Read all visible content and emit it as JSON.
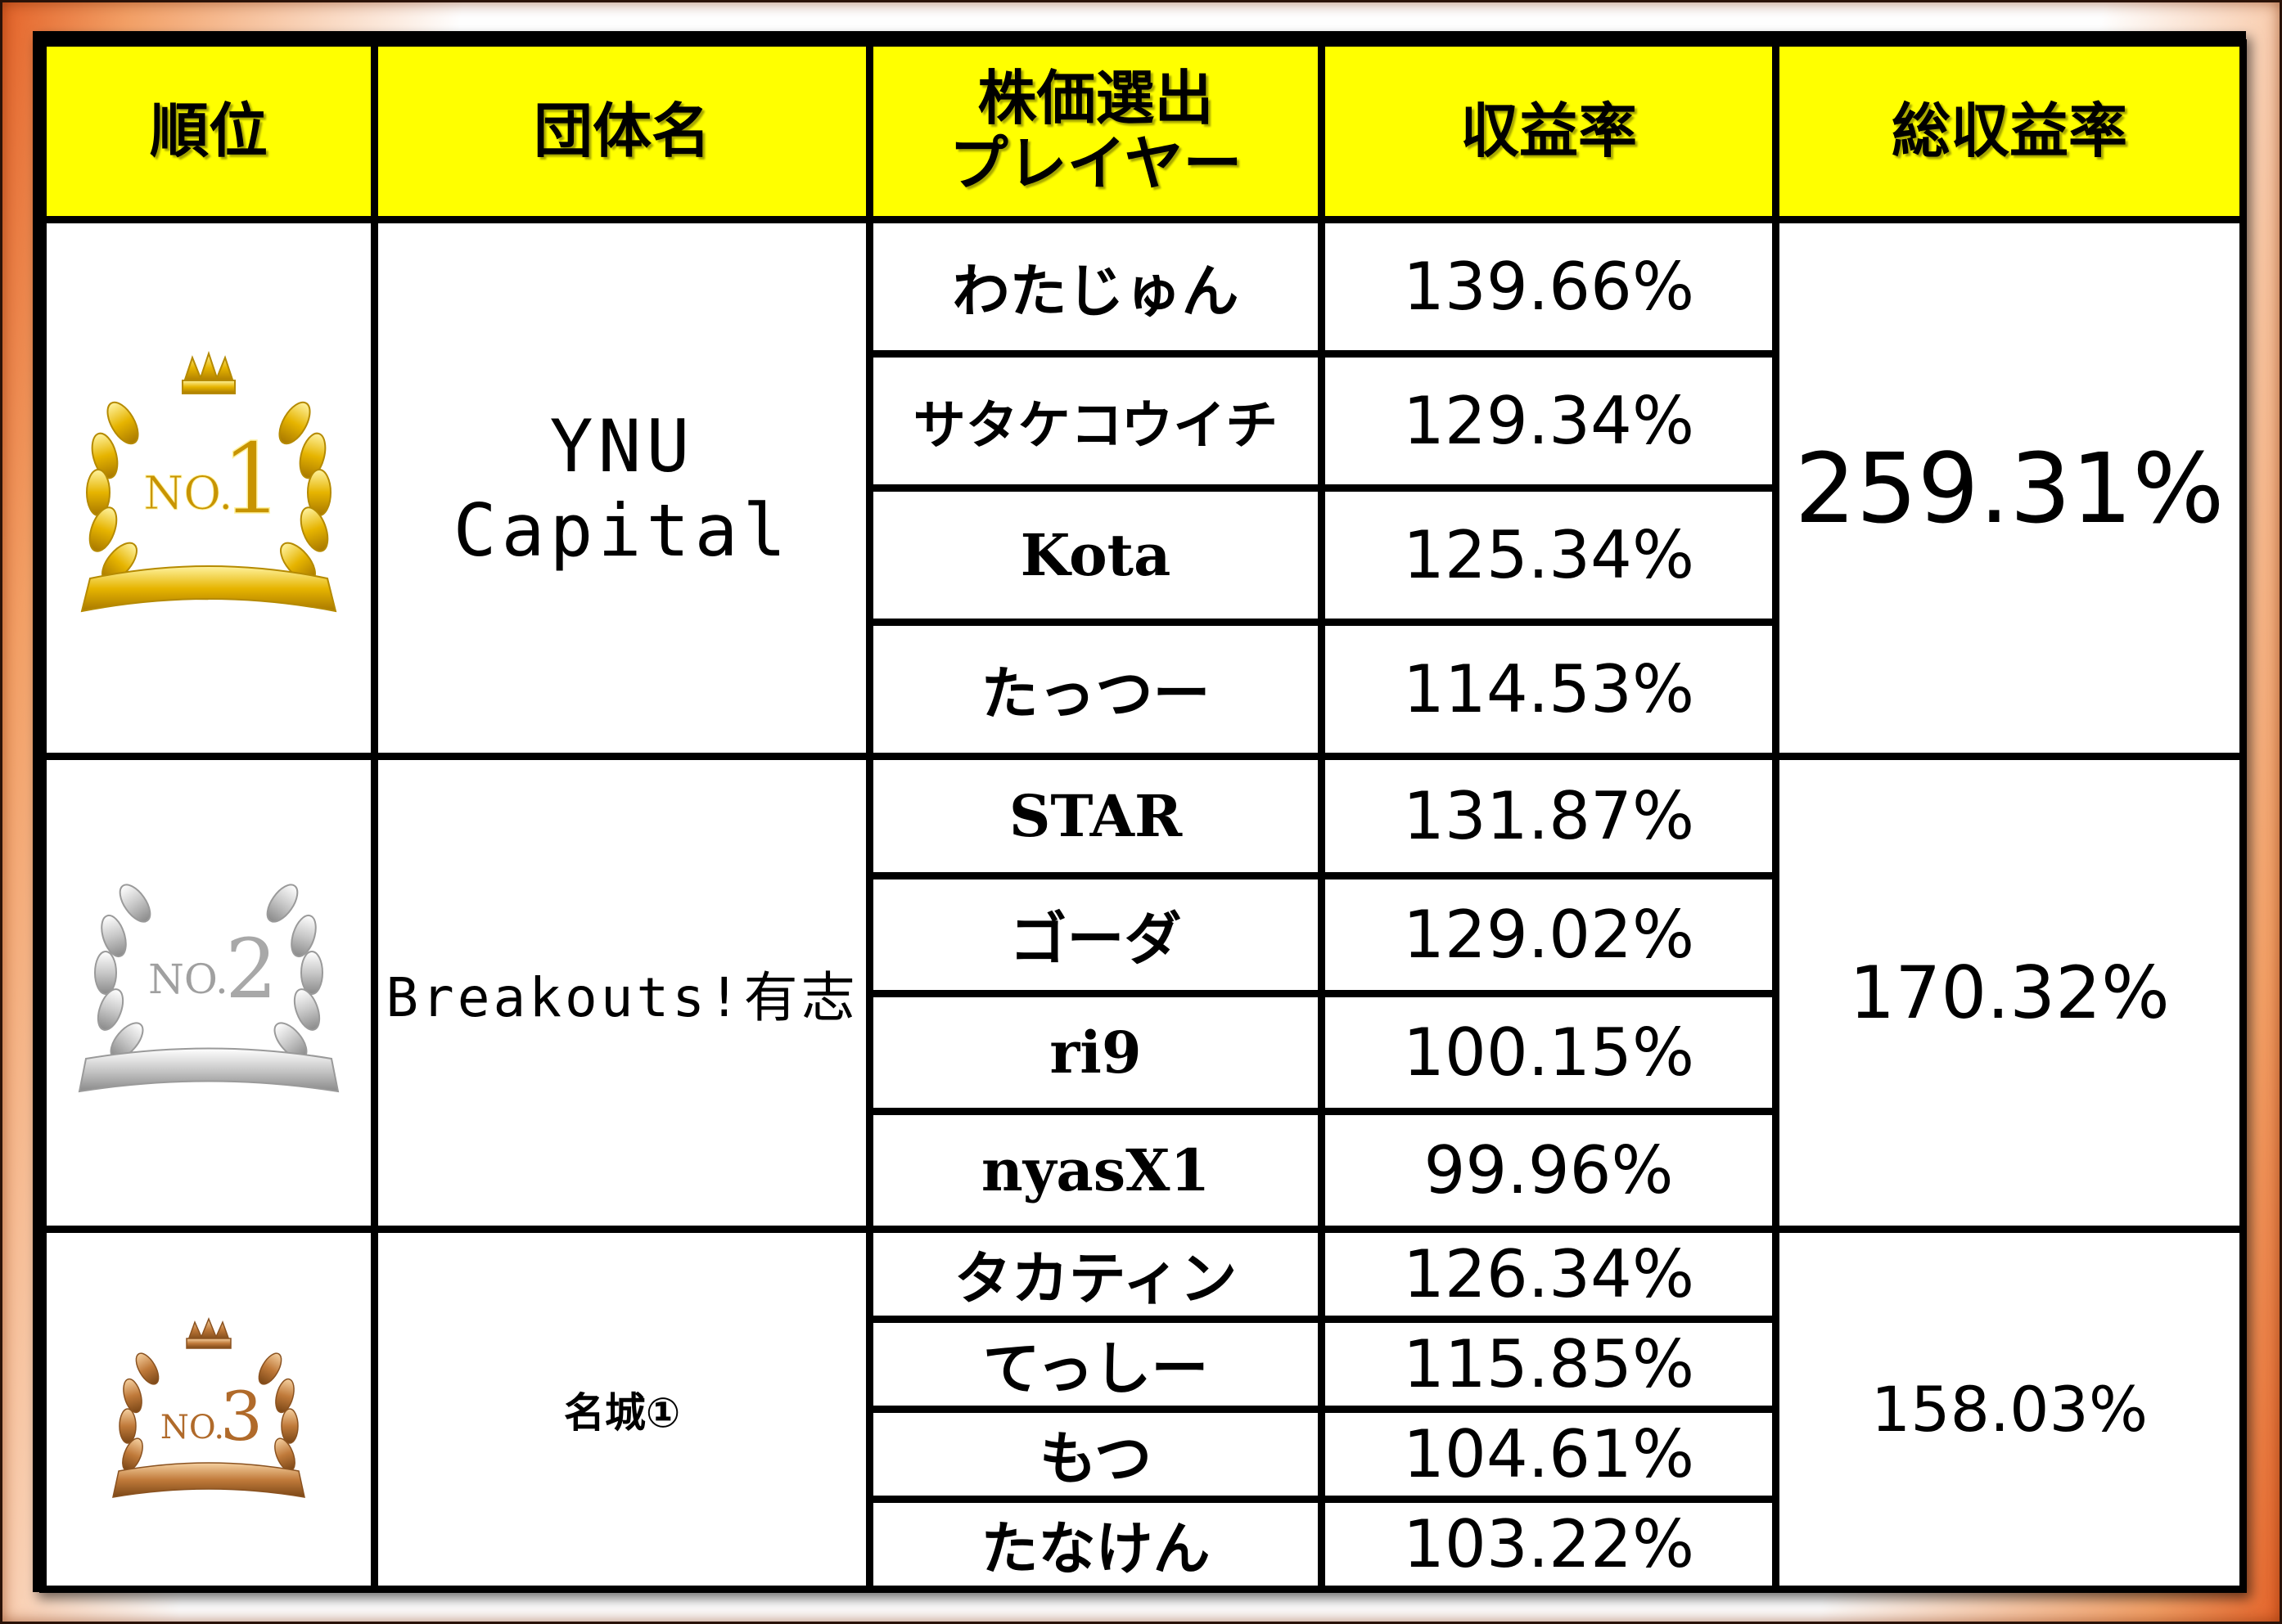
{
  "headers": {
    "rank": "順位",
    "team": "団体名",
    "player_line1": "株価選出",
    "player_line2": "プレイヤー",
    "rate": "収益率",
    "total": "総収益率"
  },
  "teams": [
    {
      "badge": "NO.1",
      "badge_prefix": "NO.",
      "badge_num": "1",
      "badge_color": "#e6b400",
      "name": "YNU Capital",
      "total": "259.31%",
      "players": [
        {
          "name": "わたじゅん",
          "rate": "139.66%"
        },
        {
          "name": "サタケコウイチ",
          "rate": "129.34%"
        },
        {
          "name": "Kota",
          "rate": "125.34%"
        },
        {
          "name": "たっつー",
          "rate": "114.53%"
        }
      ]
    },
    {
      "badge": "NO.2",
      "badge_prefix": "NO.",
      "badge_num": "2",
      "badge_color": "#b8b8b8",
      "name": "Breakouts!有志",
      "total": "170.32%",
      "players": [
        {
          "name": "STAR",
          "rate": "131.87%"
        },
        {
          "name": "ゴーダ",
          "rate": "129.02%"
        },
        {
          "name": "ri9",
          "rate": "100.15%"
        },
        {
          "name": "nyasX1",
          "rate": "99.96%"
        }
      ]
    },
    {
      "badge": "NO.3",
      "badge_prefix": "NO.",
      "badge_num": "3",
      "badge_color": "#c07a3a",
      "name": "名城①",
      "total": "158.03%",
      "players": [
        {
          "name": "タカティン",
          "rate": "126.34%"
        },
        {
          "name": "てっしー",
          "rate": "115.85%"
        },
        {
          "name": "もつ",
          "rate": "104.61%"
        },
        {
          "name": "たなけん",
          "rate": "103.22%"
        }
      ]
    }
  ]
}
